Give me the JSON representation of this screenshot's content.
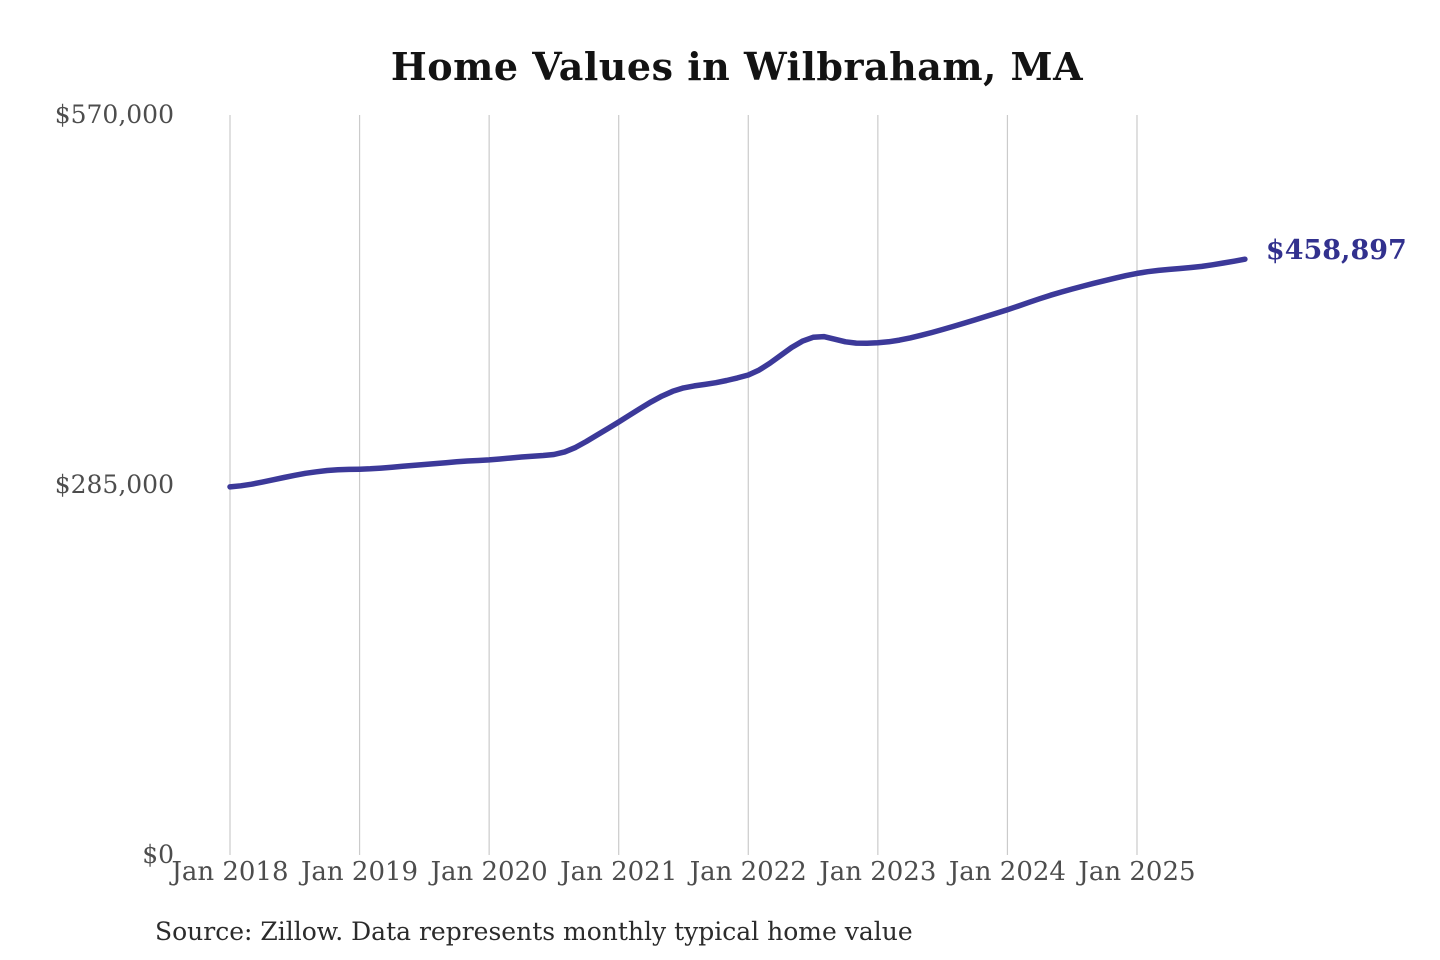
{
  "chart": {
    "colors": {
      "line": "#3c3999",
      "grid": "#cbcbcb",
      "axis_text": "#4d4d4d",
      "title_text": "#131313",
      "end_label_text": "#32318e"
    }
  },
  "chart_data": {
    "type": "line",
    "title": "Home Values in Wilbraham, MA",
    "xlabel": "",
    "ylabel": "",
    "source_note": "Source: Zillow. Data represents monthly typical home value",
    "end_label": "$458,897",
    "final_value": 458897,
    "ylim": [
      0,
      570000
    ],
    "xlim": [
      2018.0,
      2025.92
    ],
    "grid": "vertical-only",
    "legend": "none",
    "y_ticks": [
      {
        "value": 570000,
        "label": "$570,000"
      },
      {
        "value": 285000,
        "label": "$285,000"
      },
      {
        "value": 0,
        "label": "$0"
      }
    ],
    "x_ticks": [
      {
        "value": 2018,
        "label": "Jan 2018"
      },
      {
        "value": 2019,
        "label": "Jan 2019"
      },
      {
        "value": 2020,
        "label": "Jan 2020"
      },
      {
        "value": 2021,
        "label": "Jan 2021"
      },
      {
        "value": 2022,
        "label": "Jan 2022"
      },
      {
        "value": 2023,
        "label": "Jan 2023"
      },
      {
        "value": 2024,
        "label": "Jan 2024"
      },
      {
        "value": 2025,
        "label": "Jan 2025"
      }
    ],
    "series": [
      {
        "name": "Monthly typical home value",
        "x": [
          2018.0,
          2018.083,
          2018.167,
          2018.25,
          2018.333,
          2018.417,
          2018.5,
          2018.583,
          2018.667,
          2018.75,
          2018.833,
          2018.917,
          2019.0,
          2019.083,
          2019.167,
          2019.25,
          2019.333,
          2019.417,
          2019.5,
          2019.583,
          2019.667,
          2019.75,
          2019.833,
          2019.917,
          2020.0,
          2020.083,
          2020.167,
          2020.25,
          2020.333,
          2020.417,
          2020.5,
          2020.583,
          2020.667,
          2020.75,
          2020.833,
          2020.917,
          2021.0,
          2021.083,
          2021.167,
          2021.25,
          2021.333,
          2021.417,
          2021.5,
          2021.583,
          2021.667,
          2021.75,
          2021.833,
          2021.917,
          2022.0,
          2022.083,
          2022.167,
          2022.25,
          2022.333,
          2022.417,
          2022.5,
          2022.583,
          2022.667,
          2022.75,
          2022.833,
          2022.917,
          2023.0,
          2023.083,
          2023.167,
          2023.25,
          2023.333,
          2023.417,
          2023.5,
          2023.583,
          2023.667,
          2023.75,
          2023.833,
          2023.917,
          2024.0,
          2024.083,
          2024.167,
          2024.25,
          2024.333,
          2024.417,
          2024.5,
          2024.583,
          2024.667,
          2024.75,
          2024.833,
          2024.917,
          2025.0,
          2025.083,
          2025.167,
          2025.25,
          2025.333,
          2025.417,
          2025.5,
          2025.583,
          2025.667,
          2025.75,
          2025.833
        ],
        "values": [
          283500,
          284400,
          285600,
          287200,
          289000,
          290800,
          292500,
          294000,
          295200,
          296200,
          296800,
          297000,
          297200,
          297500,
          298000,
          298700,
          299400,
          300100,
          300800,
          301500,
          302200,
          302900,
          303500,
          303900,
          304300,
          305000,
          305800,
          306600,
          307200,
          307700,
          308500,
          310500,
          314000,
          318500,
          323500,
          328500,
          333500,
          338800,
          344000,
          349000,
          353500,
          357200,
          359800,
          361300,
          362500,
          363800,
          365500,
          367500,
          369700,
          373500,
          378800,
          384800,
          390800,
          395800,
          398800,
          399300,
          397300,
          395300,
          394300,
          394200,
          394500,
          395300,
          396600,
          398300,
          400300,
          402500,
          404800,
          407200,
          409700,
          412200,
          414800,
          417400,
          420000,
          422800,
          425700,
          428500,
          431200,
          433700,
          436000,
          438200,
          440400,
          442400,
          444400,
          446300,
          448000,
          449300,
          450300,
          451100,
          451800,
          452500,
          453400,
          454600,
          456000,
          457400,
          458897
        ]
      }
    ],
    "annotations": [
      {
        "text": "$458,897",
        "x": 2025.833,
        "y": 458897
      }
    ]
  }
}
